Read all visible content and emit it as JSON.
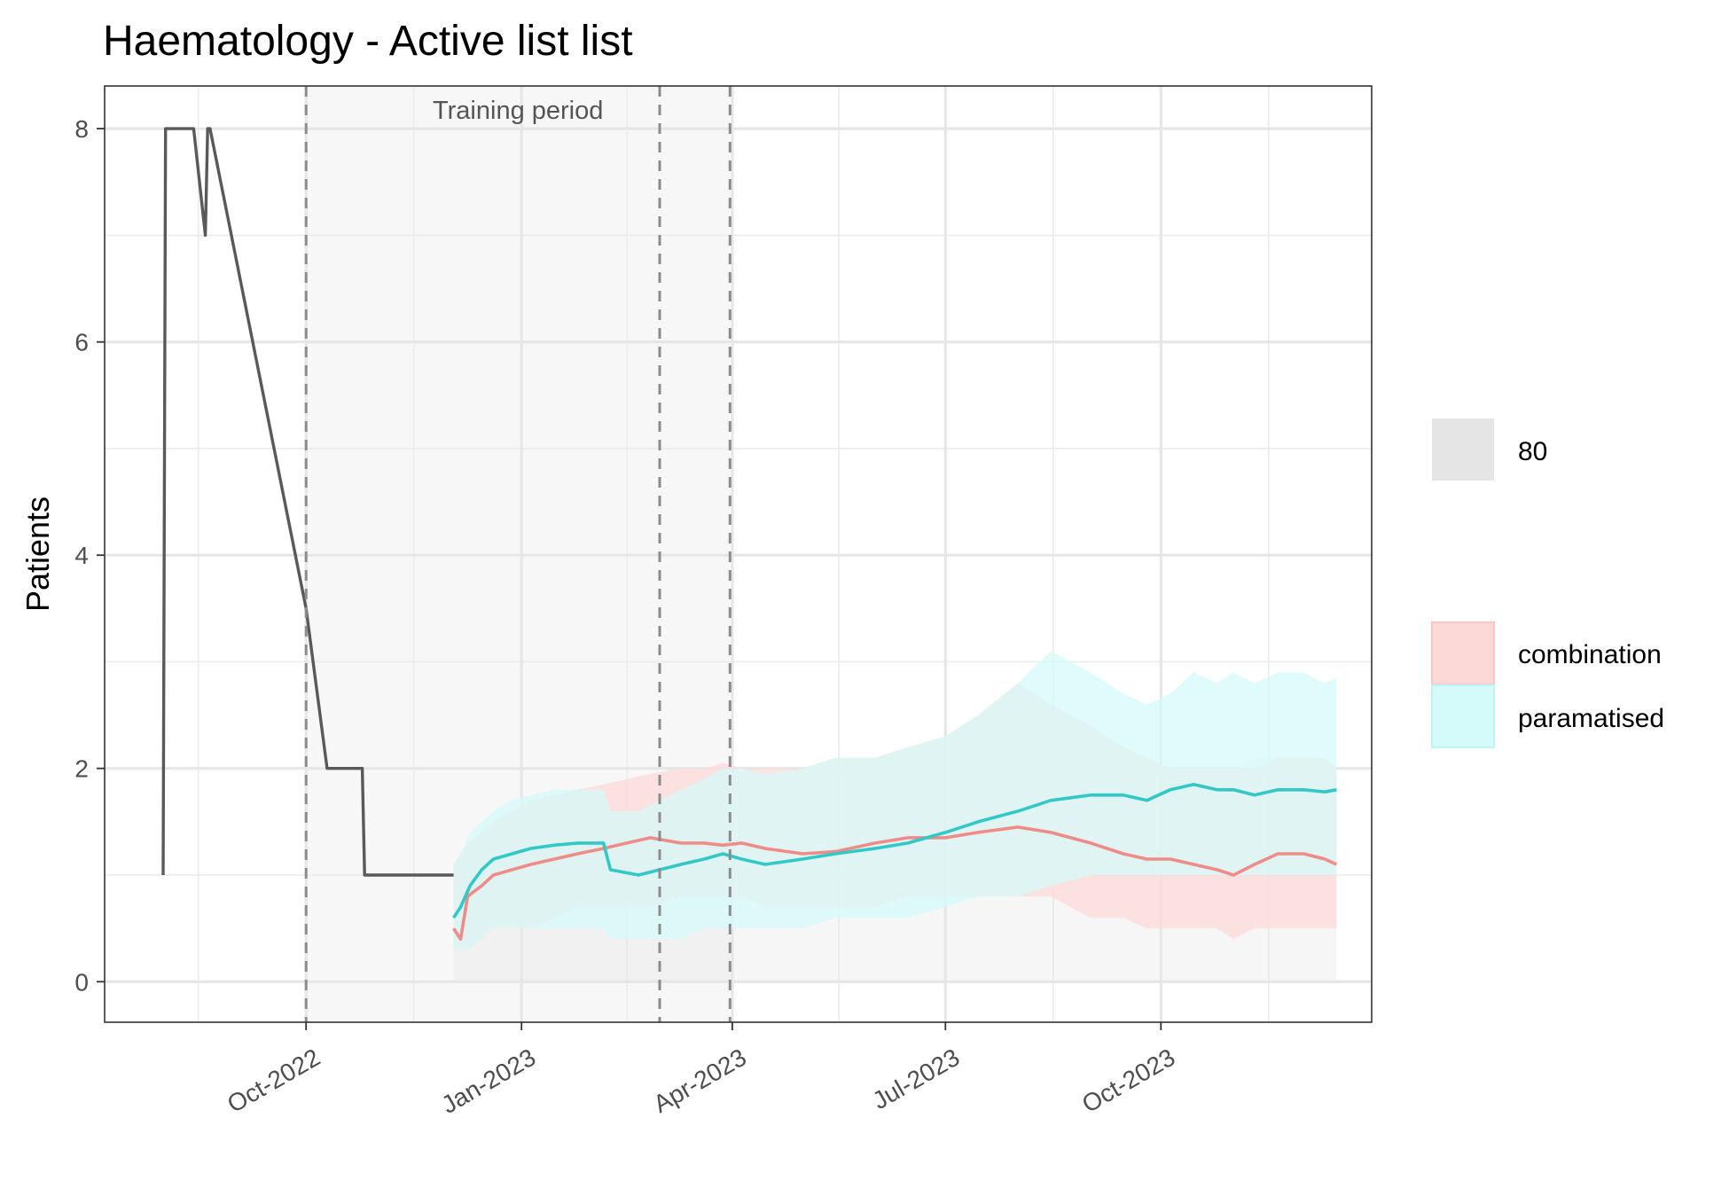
{
  "chart_data": {
    "type": "line",
    "title": "Haematology - Active list list",
    "xlabel": "",
    "ylabel": "Patients",
    "x_type": "date",
    "xlim": [
      "2022-07-07",
      "2023-12-30"
    ],
    "ylim": [
      -0.38,
      8.4
    ],
    "y_ticks": [
      0,
      2,
      4,
      6,
      8
    ],
    "x_ticks": [
      {
        "date": "2022-10-01",
        "label": "Oct-2022"
      },
      {
        "date": "2023-01-01",
        "label": "Jan-2023"
      },
      {
        "date": "2023-04-01",
        "label": "Apr-2023"
      },
      {
        "date": "2023-07-01",
        "label": "Jul-2023"
      },
      {
        "date": "2023-10-01",
        "label": "Oct-2023"
      }
    ],
    "grid": true,
    "legend_position": "right",
    "training_period": {
      "label": "Training period",
      "start": "2022-10-01",
      "end": "2023-03-31"
    },
    "vlines": [
      "2022-10-01",
      "2023-03-01",
      "2023-03-31"
    ],
    "interval": {
      "label": "80",
      "color": "#e5e5e5"
    },
    "observed": {
      "color": "#595959",
      "x": [
        "2022-08-01",
        "2022-08-02",
        "2022-08-14",
        "2022-08-19",
        "2022-08-20",
        "2022-08-21",
        "2022-10-01",
        "2022-10-10",
        "2022-10-25",
        "2022-10-26",
        "2022-12-03"
      ],
      "y": [
        1,
        8,
        8,
        7,
        8,
        8,
        3.5,
        2,
        2,
        1,
        1
      ]
    },
    "series": [
      {
        "name": "combination",
        "color": "#f08c87",
        "fill": "#fcd9d7",
        "x": [
          "2022-12-03",
          "2022-12-06",
          "2022-12-09",
          "2022-12-15",
          "2022-12-20",
          "2022-12-28",
          "2023-01-05",
          "2023-01-15",
          "2023-01-25",
          "2023-02-05",
          "2023-02-15",
          "2023-02-25",
          "2023-03-10",
          "2023-03-20",
          "2023-03-28",
          "2023-04-05",
          "2023-04-15",
          "2023-05-01",
          "2023-05-15",
          "2023-06-01",
          "2023-06-15",
          "2023-07-01",
          "2023-07-15",
          "2023-08-01",
          "2023-08-15",
          "2023-09-01",
          "2023-09-15",
          "2023-09-25",
          "2023-10-05",
          "2023-10-15",
          "2023-10-25",
          "2023-11-01",
          "2023-11-10",
          "2023-11-20",
          "2023-12-01",
          "2023-12-10",
          "2023-12-15"
        ],
        "y": [
          0.5,
          0.4,
          0.8,
          0.9,
          1.0,
          1.05,
          1.1,
          1.15,
          1.2,
          1.25,
          1.3,
          1.35,
          1.3,
          1.3,
          1.28,
          1.3,
          1.25,
          1.2,
          1.22,
          1.3,
          1.35,
          1.35,
          1.4,
          1.45,
          1.4,
          1.3,
          1.2,
          1.15,
          1.15,
          1.1,
          1.05,
          1.0,
          1.1,
          1.2,
          1.2,
          1.15,
          1.1
        ],
        "lower": [
          0.3,
          0.3,
          0.3,
          0.4,
          0.5,
          0.5,
          0.5,
          0.6,
          0.7,
          0.7,
          0.7,
          0.7,
          0.8,
          0.8,
          0.8,
          0.8,
          0.7,
          0.7,
          0.7,
          0.7,
          0.8,
          0.8,
          0.8,
          0.8,
          0.8,
          0.6,
          0.6,
          0.5,
          0.5,
          0.5,
          0.5,
          0.4,
          0.5,
          0.5,
          0.5,
          0.5,
          0.5
        ],
        "upper": [
          1.1,
          1.2,
          1.3,
          1.4,
          1.5,
          1.6,
          1.7,
          1.75,
          1.8,
          1.85,
          1.9,
          1.95,
          2.0,
          2.0,
          2.05,
          2.0,
          2.0,
          2.0,
          2.1,
          2.1,
          2.2,
          2.3,
          2.5,
          2.8,
          2.6,
          2.4,
          2.2,
          2.1,
          2.0,
          2.0,
          2.0,
          2.0,
          2.0,
          2.1,
          2.1,
          2.1,
          2.0
        ]
      },
      {
        "name": "paramatised",
        "color": "#33c8c8",
        "fill": "#d5fafa",
        "x": [
          "2022-12-03",
          "2022-12-06",
          "2022-12-10",
          "2022-12-15",
          "2022-12-20",
          "2022-12-28",
          "2023-01-05",
          "2023-01-15",
          "2023-01-25",
          "2023-02-05",
          "2023-02-08",
          "2023-02-20",
          "2023-03-01",
          "2023-03-10",
          "2023-03-20",
          "2023-03-28",
          "2023-04-05",
          "2023-04-15",
          "2023-05-01",
          "2023-05-15",
          "2023-06-01",
          "2023-06-15",
          "2023-07-01",
          "2023-07-15",
          "2023-08-01",
          "2023-08-15",
          "2023-09-01",
          "2023-09-15",
          "2023-09-25",
          "2023-10-05",
          "2023-10-15",
          "2023-10-25",
          "2023-11-01",
          "2023-11-10",
          "2023-11-20",
          "2023-12-01",
          "2023-12-10",
          "2023-12-15"
        ],
        "y": [
          0.6,
          0.7,
          0.9,
          1.05,
          1.15,
          1.2,
          1.25,
          1.28,
          1.3,
          1.3,
          1.05,
          1.0,
          1.05,
          1.1,
          1.15,
          1.2,
          1.15,
          1.1,
          1.15,
          1.2,
          1.25,
          1.3,
          1.4,
          1.5,
          1.6,
          1.7,
          1.75,
          1.75,
          1.7,
          1.8,
          1.85,
          1.8,
          1.8,
          1.75,
          1.8,
          1.8,
          1.78,
          1.8
        ],
        "lower": [
          0.3,
          0.3,
          0.3,
          0.4,
          0.5,
          0.5,
          0.5,
          0.5,
          0.5,
          0.5,
          0.4,
          0.4,
          0.4,
          0.4,
          0.5,
          0.5,
          0.5,
          0.5,
          0.5,
          0.6,
          0.6,
          0.6,
          0.7,
          0.8,
          0.8,
          0.9,
          1.0,
          1.0,
          1.0,
          1.0,
          1.0,
          1.0,
          1.0,
          1.0,
          1.0,
          1.0,
          1.0,
          1.0
        ],
        "upper": [
          1.1,
          1.2,
          1.4,
          1.5,
          1.6,
          1.7,
          1.75,
          1.8,
          1.8,
          1.8,
          1.6,
          1.6,
          1.7,
          1.8,
          1.9,
          2.0,
          2.0,
          1.95,
          2.0,
          2.1,
          2.1,
          2.2,
          2.3,
          2.5,
          2.8,
          3.1,
          2.9,
          2.7,
          2.6,
          2.7,
          2.9,
          2.8,
          2.9,
          2.8,
          2.9,
          2.9,
          2.8,
          2.85
        ]
      }
    ]
  }
}
